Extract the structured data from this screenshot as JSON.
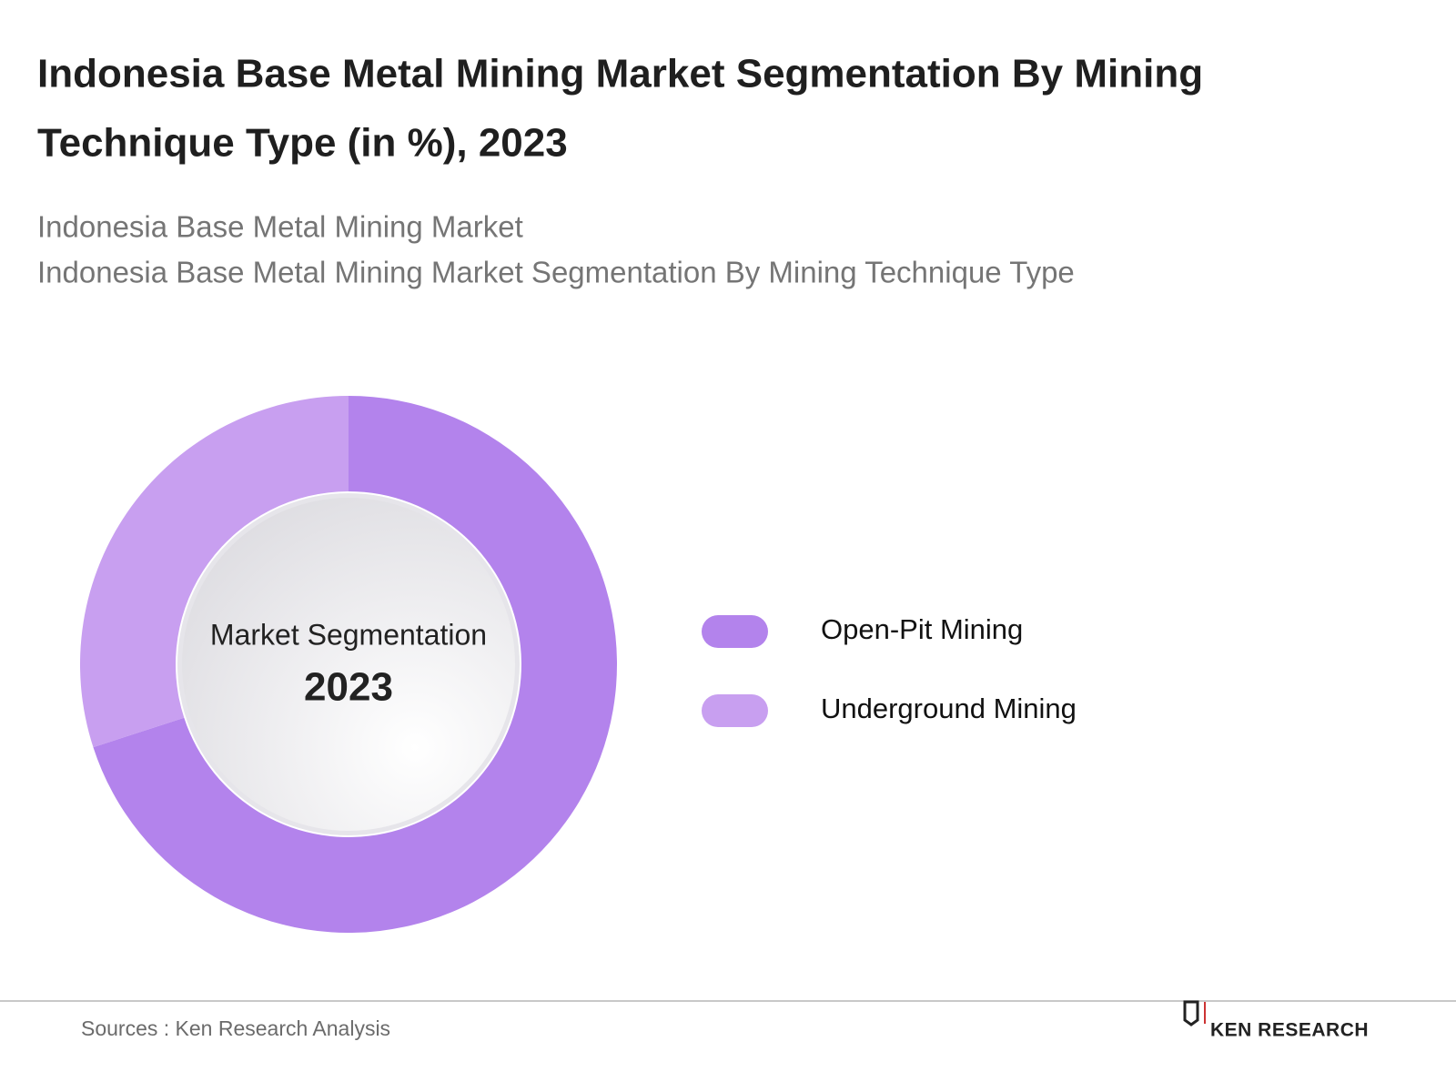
{
  "chart_data": {
    "type": "donut",
    "title": [
      "Indonesia Base Metal Mining Market Segmentation By Mining",
      "Technique Type (in %), 2023"
    ],
    "subtitle": [
      "Indonesia Base Metal Mining Market",
      "Indonesia Base Metal Mining Market Segmentation By Mining Technique Type"
    ],
    "center_label": "Market Segmentation",
    "center_year": "2023",
    "categories": [
      "Open-Pit Mining",
      "Underground Mining"
    ],
    "values": [
      70,
      30
    ],
    "colors": [
      "#b383ec",
      "#c89ff0"
    ],
    "source": "Sources : Ken Research Analysis",
    "logo": "KEN RESEARCH"
  }
}
